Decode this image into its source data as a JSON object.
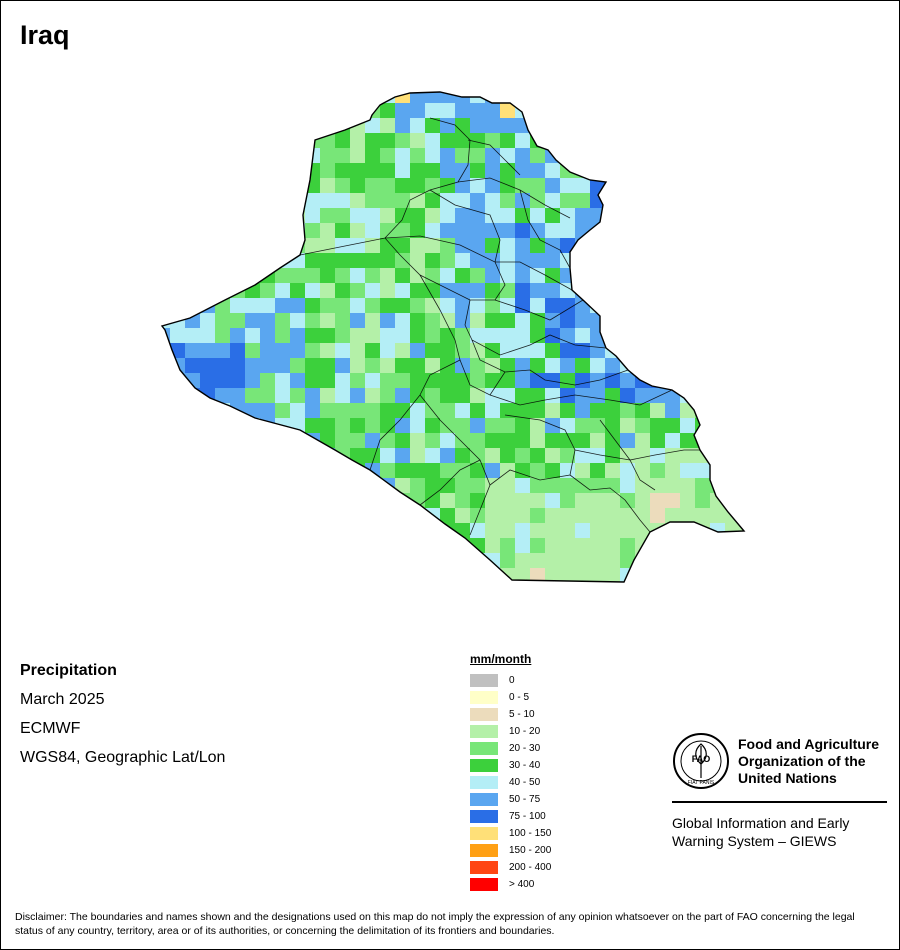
{
  "title": "Iraq",
  "info": {
    "variable": "Precipitation",
    "period": "March 2025",
    "source": "ECMWF",
    "projection": "WGS84, Geographic Lat/Lon"
  },
  "legend": {
    "unit": "mm/month",
    "classes": [
      {
        "label": "0",
        "color": "#c0c0c0"
      },
      {
        "label": "0 - 5",
        "color": "#ffffc8"
      },
      {
        "label": "5 - 10",
        "color": "#ecdcbc"
      },
      {
        "label": "10 - 20",
        "color": "#b4f0a8"
      },
      {
        "label": "20 - 30",
        "color": "#78e678"
      },
      {
        "label": "30 - 40",
        "color": "#3cd03c"
      },
      {
        "label": "40 - 50",
        "color": "#b4eef6"
      },
      {
        "label": "50 - 75",
        "color": "#5aa6f0"
      },
      {
        "label": "75 - 100",
        "color": "#2a6ee6"
      },
      {
        "label": "100 - 150",
        "color": "#ffe078"
      },
      {
        "label": "150 - 200",
        "color": "#ffa014"
      },
      {
        "label": "200 - 400",
        "color": "#ff4614"
      },
      {
        "label": "> 400",
        "color": "#ff0000"
      }
    ]
  },
  "branding": {
    "org_line1": "Food and Agriculture",
    "org_line2": "Organization of the",
    "org_line3": "United Nations",
    "logo_text": "FAO",
    "logo_motto": "FIAT PANIS",
    "system_line1": "Global Information and Early",
    "system_line2": "Warning System – GIEWS"
  },
  "disclaimer": "Disclaimer: The boundaries and names shown and the designations used on this map do not imply the expression of any opinion whatsoever on the part of FAO concerning the legal status of any country, territory, area or of its authorities, or concerning the delimitation of its frontiers and boundaries."
}
